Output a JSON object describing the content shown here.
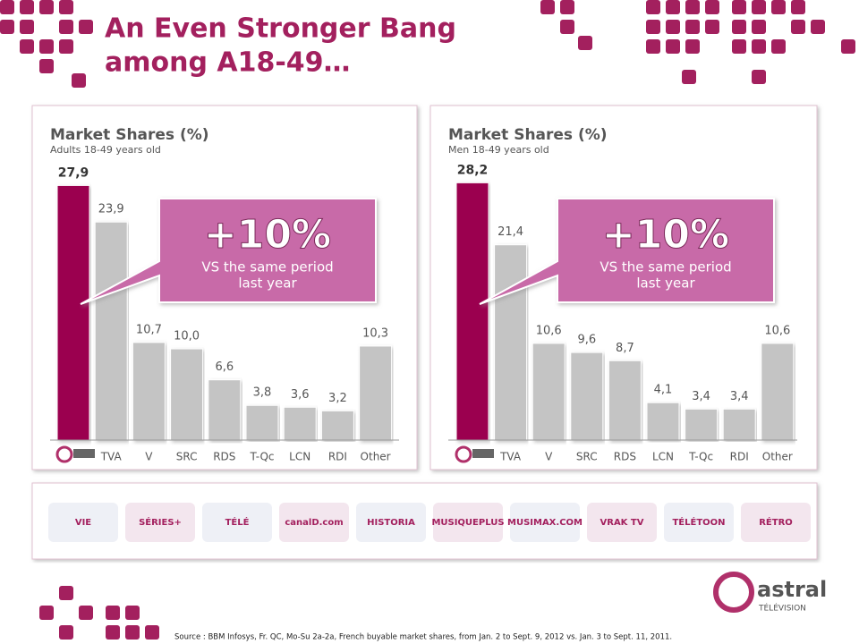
{
  "slide": {
    "title_lines": [
      "An Even Stronger Bang",
      "among A18-49…"
    ],
    "source": "Source : BBM Infosys, Fr. QC, Mo-Su 2a-2a, French buyable market shares, from Jan. 2 to Sept. 9, 2012 vs. Jan. 3 to Sept. 11, 2011.",
    "logos": [
      "VIE",
      "SÉRIES+",
      "TÉLÉ",
      "canalD.com",
      "HISTORIA",
      "MUSIQUEPLUS",
      "MUSIMAX.COM",
      "VRAK TV",
      "TÉLÉTOON",
      "RÉTRO"
    ],
    "brand": {
      "name": "astral",
      "sub": "TÉLÉVISION"
    }
  },
  "chart_data": [
    {
      "type": "bar",
      "title": "Market Shares (%)",
      "subtitle": "Adults 18-49 years old",
      "categories": [
        null,
        "TVA",
        "V",
        "SRC",
        "RDS",
        "T-Qc",
        "LCN",
        "RDI",
        "Other"
      ],
      "values": [
        27.9,
        23.9,
        10.7,
        10.0,
        6.6,
        3.8,
        3.6,
        3.2,
        10.3
      ],
      "value_labels": [
        "27,9",
        "23,9",
        "10,7",
        "10,0",
        "6,6",
        "3,8",
        "3,6",
        "3,2",
        "10,3"
      ],
      "colors": [
        "#9b0050",
        "#c4c4c4",
        "#c4c4c4",
        "#c4c4c4",
        "#c4c4c4",
        "#c4c4c4",
        "#c4c4c4",
        "#c4c4c4",
        "#c4c4c4"
      ],
      "ylim": [
        0,
        30
      ],
      "callout": {
        "headline": "+10%",
        "lines": [
          "VS the same period",
          "last year"
        ]
      }
    },
    {
      "type": "bar",
      "title": "Market Shares (%)",
      "subtitle": "Men 18-49 years old",
      "categories": [
        null,
        "TVA",
        "V",
        "SRC",
        "RDS",
        "LCN",
        "T-Qc",
        "RDI",
        "Other"
      ],
      "values": [
        28.2,
        21.4,
        10.6,
        9.6,
        8.7,
        4.1,
        3.4,
        3.4,
        10.6
      ],
      "value_labels": [
        "28,2",
        "21,4",
        "10,6",
        "9,6",
        "8,7",
        "4,1",
        "3,4",
        "3,4",
        "10,6"
      ],
      "colors": [
        "#9b0050",
        "#c4c4c4",
        "#c4c4c4",
        "#c4c4c4",
        "#c4c4c4",
        "#c4c4c4",
        "#c4c4c4",
        "#c4c4c4",
        "#c4c4c4"
      ],
      "ylim": [
        0,
        30
      ],
      "callout": {
        "headline": "+10%",
        "lines": [
          "VS the same period",
          "last year"
        ]
      }
    }
  ]
}
